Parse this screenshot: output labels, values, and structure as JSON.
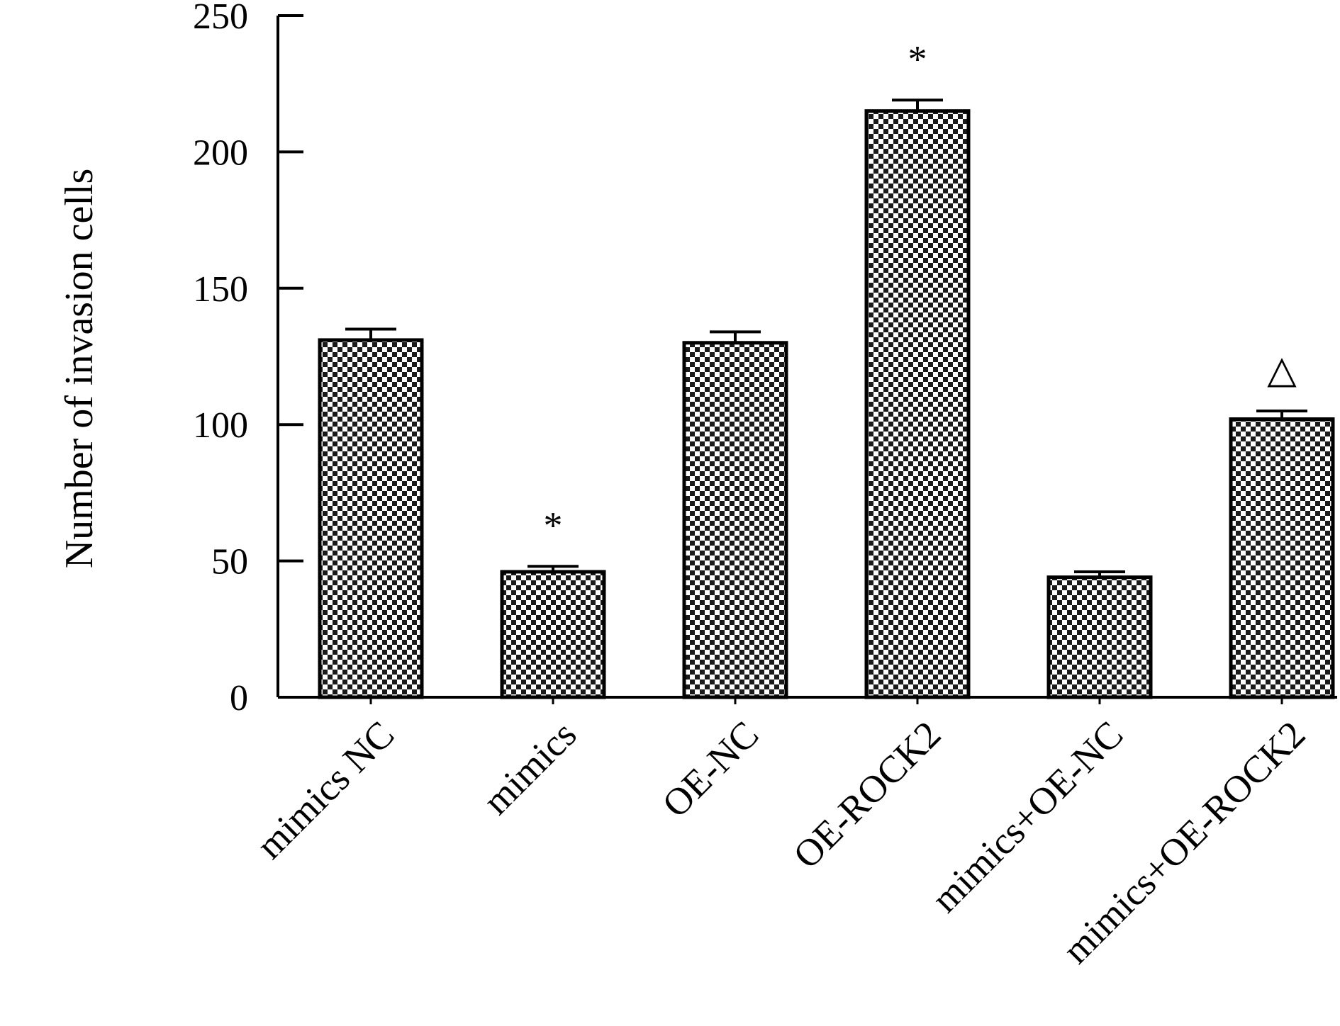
{
  "chart_data": {
    "type": "bar",
    "title": "",
    "xlabel": "",
    "ylabel": "Number of invasion cells",
    "ylim": [
      0,
      250
    ],
    "yticks": [
      0,
      50,
      100,
      150,
      200,
      250
    ],
    "categories": [
      "mimics NC",
      "mimics",
      "OE-NC",
      "OE-ROCK2",
      "mimics+OE-NC",
      "mimics+OE-ROCK2"
    ],
    "values": [
      131,
      46,
      130,
      215,
      44,
      102
    ],
    "errors": [
      4,
      2,
      4,
      4,
      2,
      3
    ],
    "annotations": [
      "",
      "*",
      "",
      "*",
      "",
      "△"
    ],
    "grid": false,
    "bar_fill": "checkered pattern",
    "colors": {
      "bar_dark": "#1a1a1a",
      "bar_light": "#ffffff",
      "axis": "#000000"
    }
  }
}
